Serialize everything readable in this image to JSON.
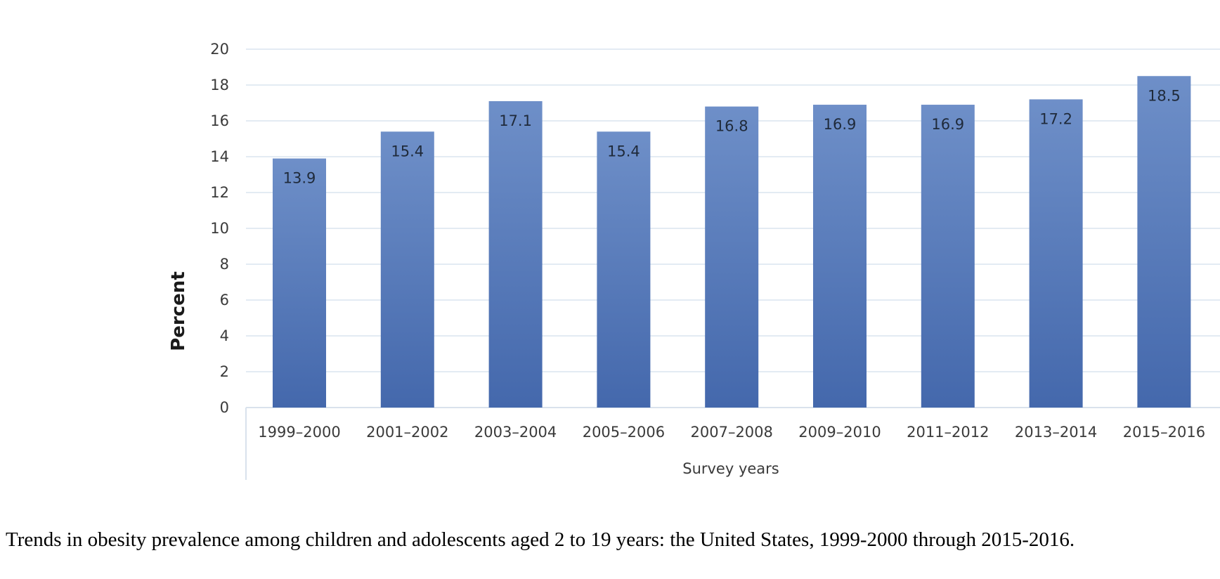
{
  "chart_data": {
    "type": "bar",
    "categories": [
      "1999–2000",
      "2001–2002",
      "2003–2004",
      "2005–2006",
      "2007–2008",
      "2009–2010",
      "2011–2012",
      "2013–2014",
      "2015–2016"
    ],
    "values": [
      13.9,
      15.4,
      17.1,
      15.4,
      16.8,
      16.9,
      16.9,
      17.2,
      18.5
    ],
    "data_labels": [
      "13.9",
      "15.4",
      "17.1",
      "15.4",
      "16.8",
      "16.9",
      "16.9",
      "17.2",
      "18.5"
    ],
    "xlabel": "Survey years",
    "ylabel": "Percent",
    "ylim": [
      0,
      20
    ],
    "yticks": [
      0,
      2,
      4,
      6,
      8,
      10,
      12,
      14,
      16,
      18,
      20
    ],
    "grid": true,
    "bar_color_top": "#6e8fc8",
    "bar_color_bottom": "#4468ac",
    "grid_color": "#e3ebf3"
  },
  "caption": "Trends in obesity prevalence among children and adolescents aged 2 to 19 years: the United States, 1999-2000 through 2015-2016."
}
